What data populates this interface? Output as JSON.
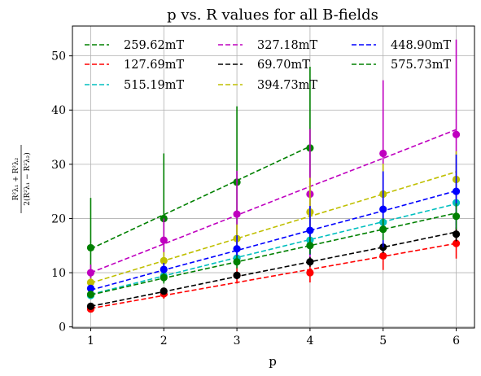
{
  "chart_data": {
    "type": "line",
    "title": "p vs. R values for all B-fields",
    "xlabel": "p",
    "ylabel": {
      "numerator": "R²λ₁ + R²λ₂",
      "denominator": "2(R²λ₁ − R²λ₂)"
    },
    "xlim": [
      0.75,
      6.25
    ],
    "ylim": [
      -0.2,
      55.5
    ],
    "xticks": [
      "1",
      "2",
      "3",
      "4",
      "5",
      "6"
    ],
    "yticks": [
      "0",
      "10",
      "20",
      "30",
      "40",
      "50"
    ],
    "grid": true,
    "legend_position": "top",
    "legend_columns": 3,
    "series": [
      {
        "name": "259.62mT",
        "color": "#008000",
        "x": [
          1,
          2,
          3,
          4
        ],
        "y": [
          14.6,
          20.0,
          26.7,
          33.0
        ],
        "err": [
          9.2,
          12.0,
          14.0,
          15.0
        ],
        "fit": [
          14.4,
          20.7,
          27.0,
          33.3
        ]
      },
      {
        "name": "127.69mT",
        "color": "#ff0000",
        "x": [
          1,
          2,
          3,
          4,
          5,
          6
        ],
        "y": [
          3.3,
          6.1,
          9.5,
          10.0,
          13.1,
          15.4
        ],
        "err": [
          0.5,
          0.9,
          1.5,
          1.8,
          2.6,
          2.8
        ],
        "fit": [
          3.4,
          5.8,
          8.2,
          10.6,
          13.0,
          15.4
        ]
      },
      {
        "name": "515.19mT",
        "color": "#00bfbf",
        "x": [
          1,
          2,
          3,
          4,
          5,
          6
        ],
        "y": [
          5.8,
          9.4,
          12.7,
          16.0,
          19.3,
          22.9
        ],
        "err": [
          0.6,
          1.1,
          1.6,
          2.4,
          3.2,
          4.1
        ],
        "fit": [
          6.0,
          9.4,
          12.8,
          16.1,
          19.4,
          22.7
        ]
      },
      {
        "name": "327.18mT",
        "color": "#bf00bf",
        "x": [
          1,
          2,
          3,
          4,
          5,
          6
        ],
        "y": [
          10.0,
          16.0,
          20.8,
          24.5,
          32.0,
          35.5
        ],
        "err": [
          1.5,
          4.0,
          8.0,
          12.0,
          13.5,
          17.5
        ],
        "fit": [
          10.0,
          15.3,
          20.6,
          25.9,
          31.1,
          36.4
        ]
      },
      {
        "name": "69.70mT",
        "color": "#000000",
        "x": [
          1,
          2,
          3,
          4,
          5,
          6
        ],
        "y": [
          3.8,
          6.6,
          9.5,
          12.0,
          14.7,
          17.1
        ],
        "err": [
          0.3,
          0.5,
          0.7,
          0.9,
          1.1,
          1.3
        ],
        "fit": [
          3.8,
          6.5,
          9.3,
          12.0,
          14.7,
          17.5
        ]
      },
      {
        "name": "394.73mT",
        "color": "#bfbf00",
        "x": [
          1,
          2,
          3,
          4,
          5,
          6
        ],
        "y": [
          8.2,
          12.2,
          16.3,
          21.2,
          24.5,
          27.2
        ],
        "err": [
          0.8,
          1.6,
          2.6,
          6.3,
          5.6,
          5.2
        ],
        "fit": [
          8.1,
          12.2,
          16.3,
          20.4,
          24.5,
          28.6
        ]
      },
      {
        "name": "448.90mT",
        "color": "#0000ff",
        "x": [
          1,
          2,
          3,
          4,
          5,
          6
        ],
        "y": [
          7.1,
          10.6,
          14.4,
          17.8,
          21.7,
          25.0
        ],
        "err": [
          0.6,
          1.2,
          2.5,
          4.5,
          7.0,
          6.8
        ],
        "fit": [
          6.8,
          10.5,
          14.1,
          17.8,
          21.4,
          25.1
        ]
      },
      {
        "name": "575.73mT",
        "color": "#008000",
        "x": [
          1,
          2,
          3,
          4,
          5,
          6
        ],
        "y": [
          6.0,
          9.1,
          12.0,
          15.0,
          18.0,
          20.4
        ],
        "err": [
          0.5,
          0.8,
          1.2,
          1.6,
          2.0,
          2.4
        ],
        "fit": [
          5.9,
          9.0,
          12.0,
          15.0,
          18.0,
          21.0
        ]
      }
    ]
  }
}
